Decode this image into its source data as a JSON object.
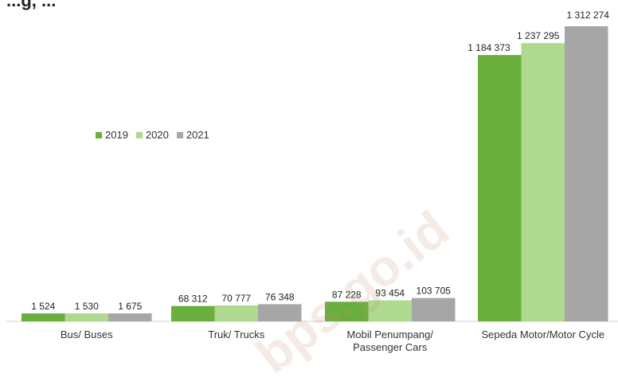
{
  "chart_data": {
    "type": "bar",
    "title_fragment": "...g, ...",
    "categories": [
      "Bus/ Buses",
      "Truk/ Trucks",
      "Mobil Penumpang/\nPassenger Cars",
      "Sepeda Motor/Motor Cycle"
    ],
    "series": [
      {
        "name": "2019",
        "color": "#6aaf3d",
        "values": [
          1524,
          68312,
          87228,
          1184373
        ],
        "labels": [
          "1 524",
          "68 312",
          "87 228",
          "1 184 373"
        ]
      },
      {
        "name": "2020",
        "color": "#afd98f",
        "values": [
          1530,
          70777,
          93454,
          1237295
        ],
        "labels": [
          "1 530",
          "70 777",
          "93 454",
          "1 237 295"
        ]
      },
      {
        "name": "2021",
        "color": "#a6a6a6",
        "values": [
          1675,
          76348,
          103705,
          1312274
        ],
        "labels": [
          "1 675",
          "76 348",
          "103 705",
          "1 312 274"
        ]
      }
    ],
    "ylim": [
      0,
      1312274
    ],
    "grid": false,
    "legend_placement": "left-middle"
  },
  "watermark": "bps.go.id"
}
